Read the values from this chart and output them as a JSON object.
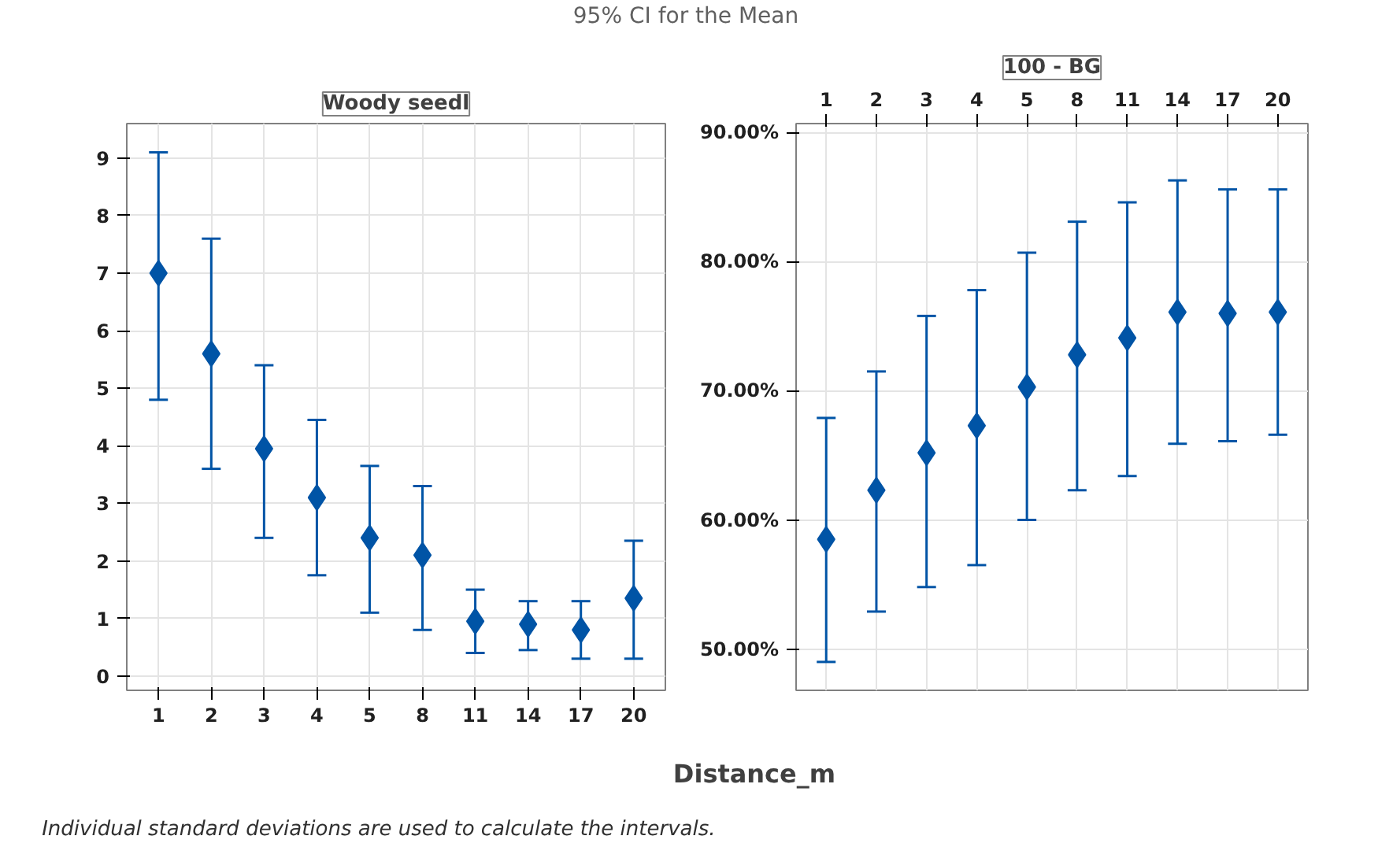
{
  "chart_data": [
    {
      "type": "other",
      "title": "95% CI for the Mean",
      "xlabel": "Distance_m",
      "annotations": [
        "Individual standard deviations are used to calculate the intervals."
      ]
    },
    {
      "type": "scatter",
      "title": "Woody seedl",
      "categories": [
        "1",
        "2",
        "3",
        "4",
        "5",
        "8",
        "11",
        "14",
        "17",
        "20"
      ],
      "marker": "diamond",
      "color": "#0054a6",
      "grid": true,
      "values": [
        7.0,
        5.6,
        3.95,
        3.1,
        2.4,
        2.1,
        0.95,
        0.9,
        0.8,
        1.35
      ],
      "errors": [
        [
          4.8,
          9.1
        ],
        [
          3.6,
          7.6
        ],
        [
          2.4,
          5.4
        ],
        [
          1.75,
          4.45
        ],
        [
          1.1,
          3.65
        ],
        [
          0.8,
          3.3
        ],
        [
          0.4,
          1.5
        ],
        [
          0.45,
          1.3
        ],
        [
          0.3,
          1.3
        ],
        [
          0.3,
          2.35
        ]
      ],
      "ylim": [
        -0.25,
        9.6
      ],
      "yticks": [
        0,
        1,
        2,
        3,
        4,
        5,
        6,
        7,
        8,
        9
      ]
    },
    {
      "type": "scatter",
      "title": "100 - BG",
      "categories": [
        "1",
        "2",
        "3",
        "4",
        "5",
        "8",
        "11",
        "14",
        "17",
        "20"
      ],
      "marker": "diamond",
      "color": "#0054a6",
      "grid": true,
      "values": [
        58.5,
        62.3,
        65.2,
        67.3,
        70.3,
        72.8,
        74.1,
        76.1,
        76.0,
        76.1
      ],
      "errors": [
        [
          49.0,
          67.9
        ],
        [
          52.9,
          71.5
        ],
        [
          54.8,
          75.8
        ],
        [
          56.5,
          77.8
        ],
        [
          60.0,
          80.7
        ],
        [
          62.3,
          83.1
        ],
        [
          63.4,
          84.6
        ],
        [
          65.9,
          86.3
        ],
        [
          66.1,
          85.6
        ],
        [
          66.6,
          85.6
        ]
      ],
      "ylim": [
        46.8,
        90.7
      ],
      "yticks": [
        {
          "value": 50,
          "label": "50.00%"
        },
        {
          "value": 60,
          "label": "60.00%"
        },
        {
          "value": 70,
          "label": "70.00%"
        },
        {
          "value": 80,
          "label": "80.00%"
        },
        {
          "value": 90,
          "label": "90.00%"
        }
      ]
    }
  ]
}
